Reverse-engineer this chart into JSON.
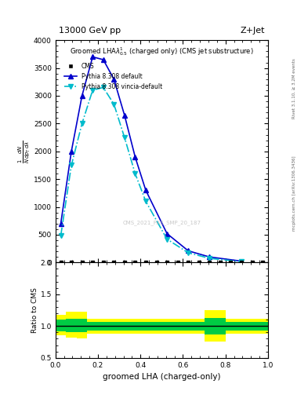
{
  "title_top": "13000 GeV pp",
  "title_right": "Z+Jet",
  "xlabel": "groomed LHA (charged-only)",
  "ylabel_ratio": "Ratio to CMS",
  "right_label_top": "Rivet 3.1.10, ≥ 3.2M events",
  "right_label_bot": "mcplots.cern.ch [arXiv:1306.3436]",
  "watermark": "CMS_2021_PAS_SMP_20_187",
  "x_pythia_default": [
    0.025,
    0.075,
    0.125,
    0.175,
    0.225,
    0.275,
    0.325,
    0.375,
    0.425,
    0.525,
    0.625,
    0.725,
    0.875
  ],
  "y_pythia_default": [
    700,
    2000,
    3000,
    3700,
    3650,
    3300,
    2650,
    1900,
    1300,
    520,
    210,
    100,
    25
  ],
  "x_pythia_vincia": [
    0.025,
    0.075,
    0.125,
    0.175,
    0.225,
    0.275,
    0.325,
    0.375,
    0.425,
    0.525,
    0.625,
    0.725,
    0.875
  ],
  "y_pythia_vincia": [
    480,
    1750,
    2500,
    3100,
    3150,
    2850,
    2250,
    1600,
    1100,
    420,
    175,
    75,
    15
  ],
  "x_cms": [
    0.025,
    0.075,
    0.125,
    0.175,
    0.225,
    0.275,
    0.325,
    0.375,
    0.425,
    0.475,
    0.525,
    0.575,
    0.625,
    0.675,
    0.725,
    0.775,
    0.825,
    0.875,
    0.925,
    0.975
  ],
  "y_cms": [
    5,
    5,
    5,
    5,
    5,
    5,
    5,
    5,
    5,
    5,
    5,
    5,
    5,
    5,
    5,
    5,
    5,
    5,
    5,
    5
  ],
  "ratio_x_edges": [
    0.0,
    0.05,
    0.1,
    0.15,
    0.2,
    0.25,
    0.3,
    0.35,
    0.4,
    0.45,
    0.5,
    0.55,
    0.6,
    0.65,
    0.7,
    0.75,
    0.8,
    0.85,
    0.9,
    0.95,
    1.0
  ],
  "ratio_yellow_lo": [
    0.85,
    0.82,
    0.8,
    0.88,
    0.88,
    0.88,
    0.88,
    0.88,
    0.88,
    0.88,
    0.88,
    0.88,
    0.88,
    0.88,
    0.75,
    0.75,
    0.88,
    0.88,
    0.88,
    0.88
  ],
  "ratio_yellow_hi": [
    1.18,
    1.22,
    1.22,
    1.12,
    1.12,
    1.12,
    1.12,
    1.12,
    1.12,
    1.12,
    1.12,
    1.12,
    1.12,
    1.12,
    1.25,
    1.25,
    1.12,
    1.12,
    1.12,
    1.12
  ],
  "ratio_green_lo": [
    0.92,
    0.9,
    0.9,
    0.93,
    0.93,
    0.93,
    0.93,
    0.93,
    0.93,
    0.93,
    0.93,
    0.93,
    0.93,
    0.93,
    0.87,
    0.87,
    0.93,
    0.93,
    0.93,
    0.93
  ],
  "ratio_green_hi": [
    1.1,
    1.12,
    1.12,
    1.07,
    1.07,
    1.07,
    1.07,
    1.07,
    1.07,
    1.07,
    1.07,
    1.07,
    1.07,
    1.07,
    1.13,
    1.13,
    1.07,
    1.07,
    1.07,
    1.07
  ],
  "color_pythia_default": "#0000cc",
  "color_pythia_vincia": "#00bbcc",
  "color_cms_marker": "#000000",
  "color_yellow_band": "#ffff00",
  "color_green_band": "#00cc44",
  "ylim_main": [
    0,
    4000
  ],
  "ylim_ratio": [
    0.5,
    2.0
  ],
  "xlim": [
    0.0,
    1.0
  ],
  "yticks_main": [
    0,
    500,
    1000,
    1500,
    2000,
    2500,
    3000,
    3500,
    4000
  ],
  "yticks_ratio": [
    0.5,
    1.0,
    1.5,
    2.0
  ]
}
